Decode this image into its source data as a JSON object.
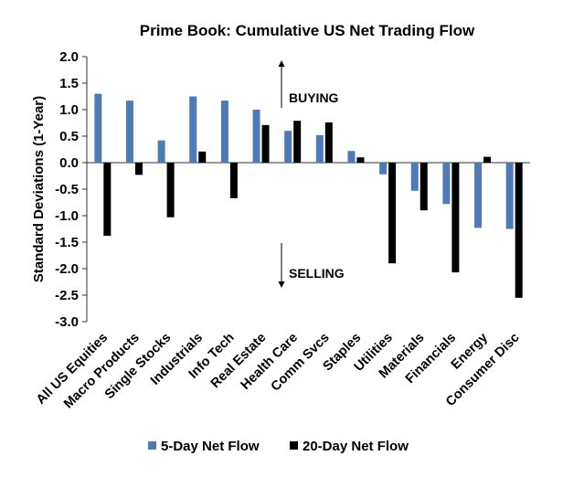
{
  "chart_data": {
    "type": "bar",
    "title": "Prime Book: Cumulative US Net Trading Flow",
    "ylabel": "Standard Deviations (1-Year)",
    "xlabel": "",
    "ylim": [
      -3.0,
      2.0
    ],
    "ytick_step": 0.5,
    "yticks": [
      "2.0",
      "1.5",
      "1.0",
      "0.5",
      "0.0",
      "-0.5",
      "-1.0",
      "-1.5",
      "-2.0",
      "-2.5",
      "-3.0"
    ],
    "grid": false,
    "legend_position": "bottom",
    "categories": [
      "All US Equities",
      "Macro Products",
      "Single Stocks",
      "Industrials",
      "Info Tech",
      "Real Estate",
      "Health Care",
      "Comm Svcs",
      "Staples",
      "Utilities",
      "Materials",
      "Financials",
      "Energy",
      "Consumer Disc"
    ],
    "series": [
      {
        "name": "5-Day Net Flow",
        "color": "#4f7ab8",
        "values": [
          1.3,
          1.17,
          0.42,
          1.25,
          1.17,
          1.0,
          0.6,
          0.52,
          0.22,
          -0.22,
          -0.53,
          -0.78,
          -1.23,
          -1.25
        ]
      },
      {
        "name": "20-Day Net Flow",
        "color": "#000000",
        "values": [
          -1.38,
          -0.23,
          -1.03,
          0.21,
          -0.67,
          0.71,
          0.79,
          0.76,
          0.1,
          -1.9,
          -0.9,
          -2.07,
          0.11,
          -2.55
        ]
      }
    ],
    "annotations": [
      {
        "text": "BUYING",
        "direction": "up"
      },
      {
        "text": "SELLING",
        "direction": "down"
      }
    ]
  }
}
